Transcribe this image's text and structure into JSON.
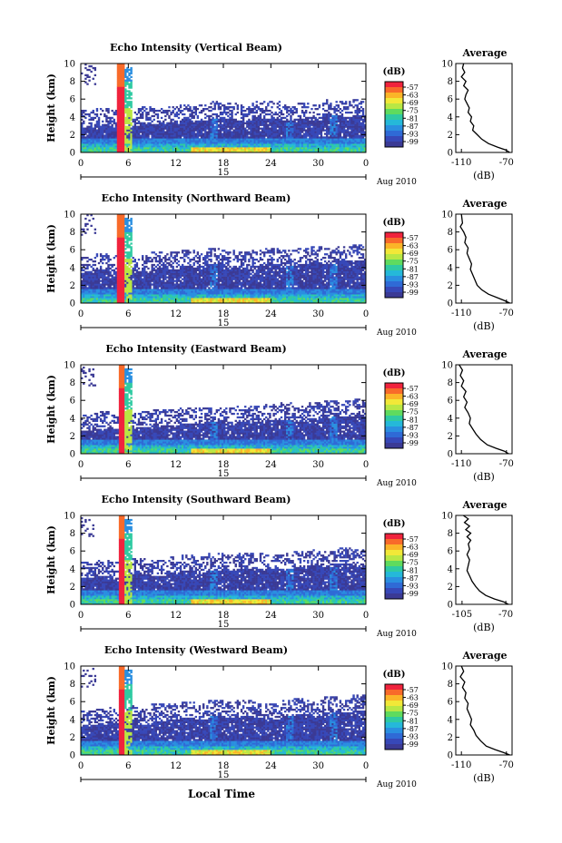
{
  "chart_data": {
    "type": "heatmap",
    "colorbar": {
      "unit_label": "(dB)",
      "tick_labels": [
        "-57",
        "-63",
        "-69",
        "-75",
        "-81",
        "-87",
        "-93",
        "-99"
      ],
      "colors": [
        "#f0233d",
        "#f86a2a",
        "#fbb428",
        "#f2e838",
        "#b9e744",
        "#5fdb5e",
        "#2fcaa2",
        "#25b8d9",
        "#2a8fe0",
        "#2f6ad6",
        "#3748b8",
        "#3b3a95"
      ]
    },
    "x_tick_labels": [
      "0",
      "6",
      "12",
      "18",
      "24",
      "30",
      "0"
    ],
    "date_tick_label": "15",
    "date_caption": "Aug 2010",
    "xlabel": "Local Time",
    "ylabel": "Height (km)",
    "y_tick_labels": [
      "0",
      "2",
      "4",
      "6",
      "8",
      "10"
    ],
    "ylim": [
      0,
      10
    ],
    "panels": [
      {
        "title": "Echo Intensity (Vertical Beam)",
        "cloud_top_km": [
          2.9,
          3.3,
          3.1,
          3.0,
          3.4,
          3.2,
          3.5,
          3.7,
          3.6,
          3.9,
          3.8,
          3.7,
          4.0,
          3.9,
          3.6,
          3.8,
          3.7,
          4.2,
          4.1,
          4.3
        ],
        "avg_profile": {
          "title": "Average",
          "xlabel": "(dB)",
          "x_ticks": [
            "-110",
            "-70"
          ],
          "xlim": [
            -115,
            -65
          ],
          "y_ticks": [
            "0",
            "2",
            "4",
            "6",
            "8",
            "10"
          ],
          "ylim": [
            0,
            10
          ],
          "points": [
            [
              -108,
              10.0
            ],
            [
              -109,
              9.5
            ],
            [
              -107,
              9.0
            ],
            [
              -110,
              8.5
            ],
            [
              -106,
              8.0
            ],
            [
              -108,
              7.5
            ],
            [
              -104,
              7.0
            ],
            [
              -106,
              6.5
            ],
            [
              -107,
              6.0
            ],
            [
              -105,
              5.5
            ],
            [
              -103,
              5.0
            ],
            [
              -104,
              4.5
            ],
            [
              -101,
              4.0
            ],
            [
              -102,
              3.5
            ],
            [
              -99,
              3.0
            ],
            [
              -100,
              2.5
            ],
            [
              -96,
              2.0
            ],
            [
              -92,
              1.5
            ],
            [
              -86,
              1.0
            ],
            [
              -78,
              0.6
            ],
            [
              -71,
              0.3
            ],
            [
              -67,
              0.0
            ]
          ]
        }
      },
      {
        "title": "Echo Intensity (Northward Beam)",
        "cloud_top_km": [
          3.4,
          3.8,
          3.6,
          3.5,
          3.7,
          4.0,
          3.9,
          4.2,
          4.1,
          4.4,
          4.3,
          4.0,
          4.3,
          4.5,
          4.2,
          4.4,
          4.6,
          4.5,
          4.7,
          4.8
        ],
        "avg_profile": {
          "title": "Average",
          "xlabel": "(dB)",
          "x_ticks": [
            "-110",
            "-70"
          ],
          "xlim": [
            -115,
            -65
          ],
          "y_ticks": [
            "0",
            "2",
            "4",
            "6",
            "8",
            "10"
          ],
          "ylim": [
            0,
            10
          ],
          "points": [
            [
              -110,
              10.0
            ],
            [
              -109,
              9.0
            ],
            [
              -111,
              8.6
            ],
            [
              -108,
              8.0
            ],
            [
              -106,
              7.4
            ],
            [
              -107,
              6.8
            ],
            [
              -104,
              6.2
            ],
            [
              -105,
              5.6
            ],
            [
              -103,
              5.0
            ],
            [
              -101,
              4.4
            ],
            [
              -102,
              3.8
            ],
            [
              -100,
              3.2
            ],
            [
              -98,
              2.6
            ],
            [
              -96,
              2.0
            ],
            [
              -92,
              1.5
            ],
            [
              -86,
              1.0
            ],
            [
              -78,
              0.6
            ],
            [
              -72,
              0.3
            ],
            [
              -67,
              0.0
            ]
          ]
        }
      },
      {
        "title": "Echo Intensity (Eastward Beam)",
        "cloud_top_km": [
          2.6,
          2.9,
          2.7,
          3.1,
          3.0,
          3.3,
          3.2,
          3.5,
          3.4,
          3.6,
          3.5,
          3.7,
          3.6,
          3.8,
          3.9,
          3.7,
          4.0,
          4.2,
          4.3,
          4.4
        ],
        "avg_profile": {
          "title": "Average",
          "xlabel": "(dB)",
          "x_ticks": [
            "-110",
            "-70"
          ],
          "xlim": [
            -115,
            -65
          ],
          "y_ticks": [
            "0",
            "2",
            "4",
            "6",
            "8",
            "10"
          ],
          "ylim": [
            0,
            10
          ],
          "points": [
            [
              -112,
              10.0
            ],
            [
              -109,
              9.4
            ],
            [
              -111,
              8.8
            ],
            [
              -108,
              8.2
            ],
            [
              -110,
              7.6
            ],
            [
              -106,
              7.0
            ],
            [
              -108,
              6.4
            ],
            [
              -105,
              5.8
            ],
            [
              -107,
              5.2
            ],
            [
              -104,
              4.6
            ],
            [
              -102,
              4.0
            ],
            [
              -103,
              3.4
            ],
            [
              -100,
              2.8
            ],
            [
              -97,
              2.2
            ],
            [
              -93,
              1.6
            ],
            [
              -87,
              1.0
            ],
            [
              -79,
              0.6
            ],
            [
              -72,
              0.3
            ],
            [
              -68,
              0.0
            ]
          ]
        }
      },
      {
        "title": "Echo Intensity (Southward Beam)",
        "cloud_top_km": [
          3.0,
          3.3,
          3.1,
          3.4,
          3.5,
          3.3,
          3.6,
          3.8,
          3.7,
          3.9,
          3.8,
          4.0,
          3.9,
          4.1,
          4.0,
          4.2,
          4.4,
          4.3,
          4.6,
          4.5
        ],
        "avg_profile": {
          "title": "Average",
          "xlabel": "(dB)",
          "x_ticks": [
            "-105",
            "-70"
          ],
          "xlim": [
            -110,
            -65
          ],
          "y_ticks": [
            "0",
            "2",
            "4",
            "6",
            "8",
            "10"
          ],
          "ylim": [
            0,
            10
          ],
          "points": [
            [
              -104,
              10.0
            ],
            [
              -100,
              9.6
            ],
            [
              -103,
              9.2
            ],
            [
              -99,
              8.8
            ],
            [
              -102,
              8.4
            ],
            [
              -98,
              8.0
            ],
            [
              -101,
              7.6
            ],
            [
              -98,
              7.2
            ],
            [
              -100,
              6.8
            ],
            [
              -99,
              6.2
            ],
            [
              -101,
              5.6
            ],
            [
              -99,
              5.0
            ],
            [
              -100,
              4.4
            ],
            [
              -101,
              3.8
            ],
            [
              -99,
              3.2
            ],
            [
              -97,
              2.6
            ],
            [
              -94,
              2.0
            ],
            [
              -91,
              1.5
            ],
            [
              -86,
              1.0
            ],
            [
              -79,
              0.6
            ],
            [
              -72,
              0.3
            ],
            [
              -68,
              0.0
            ]
          ]
        }
      },
      {
        "title": "Echo Intensity (Westward Beam)",
        "cloud_top_km": [
          3.2,
          3.5,
          3.6,
          3.8,
          3.4,
          3.9,
          4.0,
          4.3,
          4.1,
          4.4,
          4.2,
          4.5,
          4.3,
          4.1,
          4.4,
          4.6,
          4.5,
          4.8,
          4.7,
          5.0
        ],
        "avg_profile": {
          "title": "Average",
          "xlabel": "(dB)",
          "x_ticks": [
            "-110",
            "-70"
          ],
          "xlim": [
            -115,
            -65
          ],
          "y_ticks": [
            "0",
            "2",
            "4",
            "6",
            "8",
            "10"
          ],
          "ylim": [
            0,
            10
          ],
          "points": [
            [
              -110,
              10.0
            ],
            [
              -108,
              9.4
            ],
            [
              -111,
              8.8
            ],
            [
              -107,
              8.2
            ],
            [
              -109,
              7.6
            ],
            [
              -106,
              7.0
            ],
            [
              -107,
              6.4
            ],
            [
              -104,
              5.8
            ],
            [
              -105,
              5.2
            ],
            [
              -103,
              4.6
            ],
            [
              -101,
              4.0
            ],
            [
              -102,
              3.4
            ],
            [
              -99,
              2.8
            ],
            [
              -97,
              2.2
            ],
            [
              -93,
              1.6
            ],
            [
              -88,
              1.0
            ],
            [
              -80,
              0.6
            ],
            [
              -73,
              0.3
            ],
            [
              -67,
              0.0
            ]
          ]
        }
      }
    ]
  }
}
